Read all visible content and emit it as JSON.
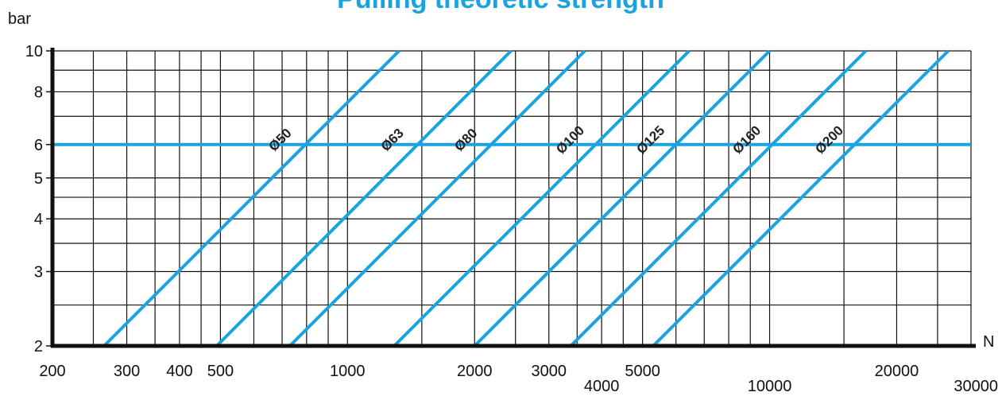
{
  "chart_data": {
    "type": "line",
    "title": "Pulling theoretic strength",
    "ylabel": "bar",
    "xlabel": "N",
    "x_scale": "log",
    "y_scale": "log",
    "xlim": [
      200,
      30000
    ],
    "ylim": [
      2,
      10
    ],
    "x_ticks": [
      {
        "value": 200,
        "label": "200",
        "row": 0
      },
      {
        "value": 300,
        "label": "300",
        "row": 0
      },
      {
        "value": 400,
        "label": "400",
        "row": 0
      },
      {
        "value": 500,
        "label": "500",
        "row": 0
      },
      {
        "value": 1000,
        "label": "1000",
        "row": 0
      },
      {
        "value": 2000,
        "label": "2000",
        "row": 0
      },
      {
        "value": 3000,
        "label": "3000",
        "row": 0
      },
      {
        "value": 4000,
        "label": "4000",
        "row": 1
      },
      {
        "value": 5000,
        "label": "5000",
        "row": 0
      },
      {
        "value": 10000,
        "label": "10000",
        "row": 1
      },
      {
        "value": 20000,
        "label": "20000",
        "row": 0
      },
      {
        "value": 30000,
        "label": "30000",
        "row": 1
      }
    ],
    "y_ticks": [
      {
        "value": 2,
        "label": "2"
      },
      {
        "value": 3,
        "label": "3"
      },
      {
        "value": 4,
        "label": "4"
      },
      {
        "value": 5,
        "label": "5"
      },
      {
        "value": 6,
        "label": "6"
      },
      {
        "value": 8,
        "label": "8"
      },
      {
        "value": 10,
        "label": "10"
      }
    ],
    "grid": true,
    "x_grid": [
      250,
      300,
      350,
      400,
      450,
      500,
      600,
      700,
      800,
      900,
      1000,
      1500,
      2000,
      2500,
      3000,
      3500,
      4000,
      4500,
      5000,
      6000,
      7000,
      8000,
      9000,
      10000,
      15000,
      20000,
      25000
    ],
    "y_grid": [
      2.5,
      3,
      3.5,
      4,
      4.5,
      5,
      6,
      7,
      8,
      9
    ],
    "reference_line": {
      "y": 6
    },
    "series": [
      {
        "name": "Ø50",
        "x": [
          265,
          1325
        ],
        "y": [
          2,
          10
        ]
      },
      {
        "name": "Ø63",
        "x": [
          490,
          2440
        ],
        "y": [
          2,
          10
        ]
      },
      {
        "name": "Ø80",
        "x": [
          730,
          3650
        ],
        "y": [
          2,
          10
        ]
      },
      {
        "name": "Ø100",
        "x": [
          1290,
          6450
        ],
        "y": [
          2,
          10
        ]
      },
      {
        "name": "Ø125",
        "x": [
          2000,
          10000
        ],
        "y": [
          2,
          10
        ]
      },
      {
        "name": "Ø160",
        "x": [
          3380,
          16900
        ],
        "y": [
          2,
          10
        ]
      },
      {
        "name": "Ø200",
        "x": [
          5300,
          26500
        ],
        "y": [
          2,
          10
        ]
      }
    ],
    "colors": {
      "series": "#1aa3e0",
      "title": "#1aa3e0",
      "grid": "#111111",
      "axis": "#111111"
    }
  }
}
